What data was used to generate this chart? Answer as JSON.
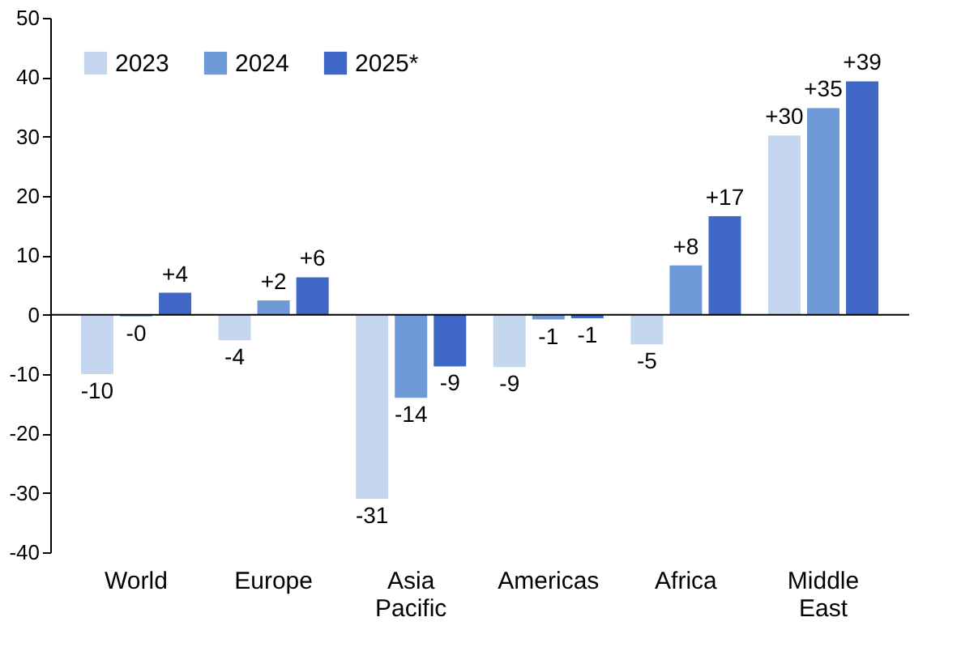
{
  "chart_data": {
    "type": "bar",
    "categories": [
      "World",
      "Europe",
      "Asia Pacific",
      "Americas",
      "Africa",
      "Middle East"
    ],
    "series": [
      {
        "name": "2023",
        "color": "#c5d7ee",
        "values": [
          -10,
          -4.3,
          -31,
          -8.8,
          -5,
          30.2
        ],
        "value_labels": [
          "-10",
          "-4",
          "-31",
          "-9",
          "-5",
          "+30"
        ]
      },
      {
        "name": "2024",
        "color": "#6f9ad8",
        "values": [
          -0.3,
          2.4,
          -14,
          -0.8,
          8.3,
          34.8
        ],
        "value_labels": [
          "-0",
          "+2",
          "-14",
          "-1",
          "+8",
          "+35"
        ]
      },
      {
        "name": "2025*",
        "color": "#3f67c6",
        "values": [
          3.7,
          6.3,
          -8.7,
          -0.6,
          16.6,
          39.3
        ],
        "value_labels": [
          "+4",
          "+6",
          "-9",
          "-1",
          "+17",
          "+39"
        ]
      }
    ],
    "ylim": [
      -40,
      50
    ],
    "yticks": [
      -40,
      -30,
      -20,
      -10,
      0,
      10,
      20,
      30,
      40,
      50
    ],
    "grid": false,
    "legend": "top left",
    "ref_lines": [
      {
        "axis": "y",
        "value": 0,
        "color": "#000000"
      }
    ]
  }
}
